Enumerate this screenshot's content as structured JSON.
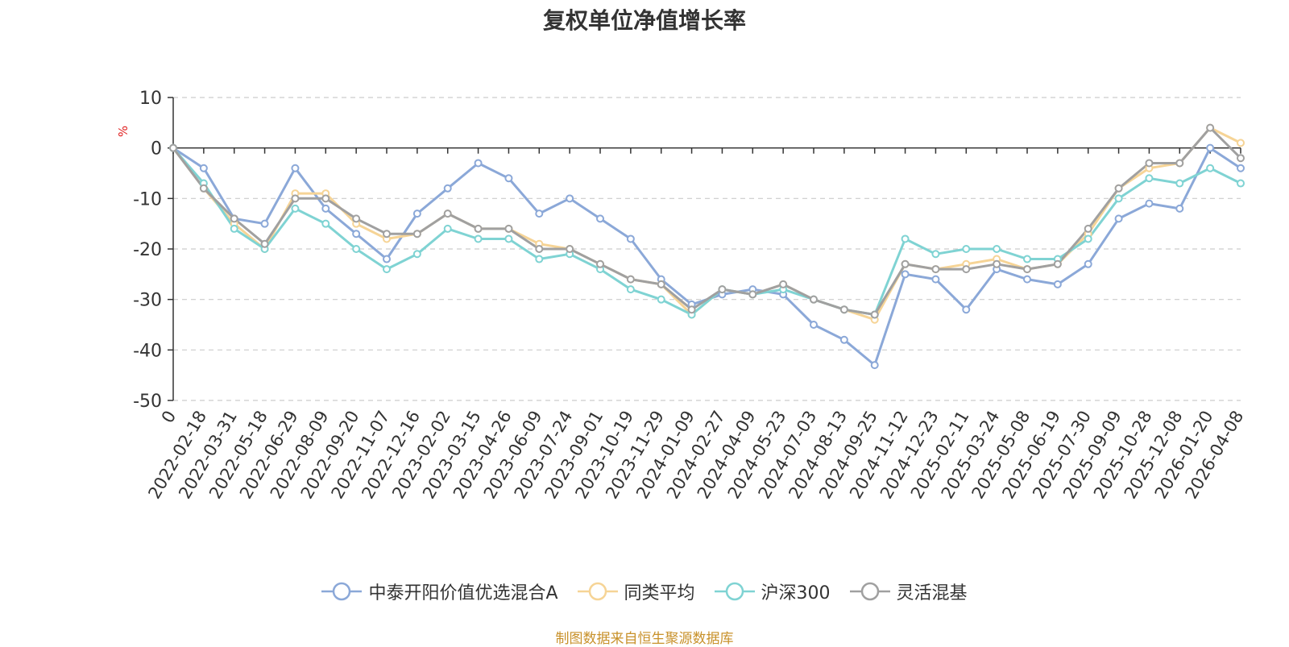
{
  "chart_data": {
    "type": "line",
    "title": "复权单位净值增长率",
    "ylabel": "%",
    "xlabel": "",
    "ylim": [
      -50,
      10
    ],
    "yticks": [
      10,
      0,
      -10,
      -20,
      -30,
      -40,
      -50
    ],
    "ytick_labels": [
      "10",
      "0",
      "-10",
      "-20",
      "-30",
      "-40",
      "-50"
    ],
    "categories": [
      "0",
      "2022-02-18",
      "2022-03-31",
      "2022-05-18",
      "2022-06-29",
      "2022-08-09",
      "2022-09-20",
      "2022-11-07",
      "2022-12-16",
      "2023-02-02",
      "2023-03-15",
      "2023-04-26",
      "2023-06-09",
      "2023-07-24",
      "2023-09-01",
      "2023-10-19",
      "2023-11-29",
      "2024-01-09",
      "2024-02-27",
      "2024-04-09",
      "2024-05-23",
      "2024-07-03",
      "2024-08-13",
      "2024-09-25",
      "2024-11-12",
      "2024-12-23",
      "2025-02-11",
      "2025-03-24",
      "2025-05-08",
      "2025-06-19",
      "2025-07-30",
      "2025-09-09",
      "2025-10-28",
      "2025-12-08",
      "2026-01-20",
      "2026-04-08"
    ],
    "grid": true,
    "legend_position": "bottom",
    "series": [
      {
        "name": "中泰开阳价值优选混合A",
        "color": "#8ba8d8",
        "values": [
          0,
          -4,
          -14,
          -15,
          -4,
          -12,
          -17,
          -22,
          -13,
          -8,
          -3,
          -6,
          -13,
          -10,
          -14,
          -18,
          -26,
          -31,
          -29,
          -28,
          -29,
          -35,
          -38,
          -43,
          -25,
          -26,
          -32,
          -24,
          -26,
          -27,
          -23,
          -14,
          -11,
          -12,
          0,
          -4
        ]
      },
      {
        "name": "同类平均",
        "color": "#f6d496",
        "values": [
          0,
          -8,
          -15,
          -20,
          -9,
          -9,
          -15,
          -18,
          -17,
          -13,
          -16,
          -16,
          -19,
          -20,
          -23,
          -26,
          -27,
          -33,
          -28,
          -29,
          -27,
          -30,
          -32,
          -34,
          -23,
          -24,
          -23,
          -22,
          -24,
          -23,
          -17,
          -8,
          -4,
          -3,
          4,
          1
        ]
      },
      {
        "name": "沪深300",
        "color": "#7fd3d3",
        "values": [
          0,
          -7,
          -16,
          -20,
          -12,
          -15,
          -20,
          -24,
          -21,
          -16,
          -18,
          -18,
          -22,
          -21,
          -24,
          -28,
          -30,
          -33,
          -28,
          -29,
          -28,
          -30,
          -32,
          -33,
          -18,
          -21,
          -20,
          -20,
          -22,
          -22,
          -18,
          -10,
          -6,
          -7,
          -4,
          -7
        ]
      },
      {
        "name": "灵活混基",
        "color": "#a0a0a0",
        "values": [
          0,
          -8,
          -14,
          -19,
          -10,
          -10,
          -14,
          -17,
          -17,
          -13,
          -16,
          -16,
          -20,
          -20,
          -23,
          -26,
          -27,
          -32,
          -28,
          -29,
          -27,
          -30,
          -32,
          -33,
          -23,
          -24,
          -24,
          -23,
          -24,
          -23,
          -16,
          -8,
          -3,
          -3,
          4,
          -2
        ]
      }
    ],
    "source": "制图数据来自恒生聚源数据库"
  }
}
